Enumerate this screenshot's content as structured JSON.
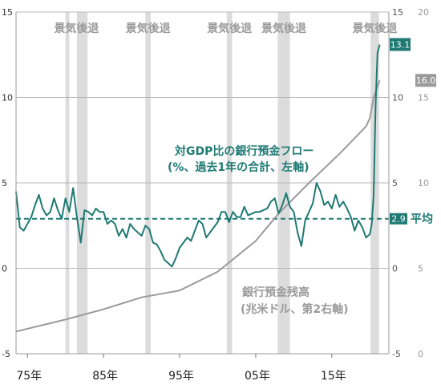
{
  "chart_data": {
    "type": "line",
    "recession_label": "景気後退",
    "recessions": [
      [
        1980.0,
        1980.5
      ],
      [
        1981.5,
        1982.9
      ],
      [
        1990.5,
        1991.2
      ],
      [
        2001.2,
        2001.9
      ],
      [
        2007.9,
        2009.5
      ],
      [
        2020.1,
        2021.2
      ]
    ],
    "x_ticks": [
      {
        "value": 1975,
        "label": "75年"
      },
      {
        "value": 1985,
        "label": "85年"
      },
      {
        "value": 1995,
        "label": "95年"
      },
      {
        "value": 2005,
        "label": "05年"
      },
      {
        "value": 2015,
        "label": "15年"
      }
    ],
    "left_axis": {
      "range": [
        -5,
        15
      ],
      "ticks": [
        -5,
        0,
        5,
        10,
        15
      ]
    },
    "right_axis_1": {
      "range": [
        -5,
        15
      ],
      "ticks": [
        -5,
        0,
        5,
        10,
        15
      ]
    },
    "right_axis_2": {
      "range": [
        0,
        20
      ],
      "ticks": [
        0,
        5,
        10,
        15,
        20
      ]
    },
    "grid": true,
    "average": {
      "value": 2.9,
      "label": "2.9",
      "name": "平均"
    },
    "series": [
      {
        "name": "対GDP比の銀行預金フロー",
        "name_line2": "(%、過去1年の合計、左軸)",
        "color": "#1f7a73",
        "axis": "left",
        "last_value_label": "13.1",
        "x": [
          1973.5,
          1974,
          1974.5,
          1975,
          1975.5,
          1976,
          1976.5,
          1977,
          1977.5,
          1978,
          1978.5,
          1979,
          1979.5,
          1980,
          1980.5,
          1981,
          1981.5,
          1982,
          1982.5,
          1983,
          1983.5,
          1984,
          1984.5,
          1985,
          1985.5,
          1986,
          1986.5,
          1987,
          1987.5,
          1988,
          1988.5,
          1989,
          1989.5,
          1990,
          1990.5,
          1991,
          1991.5,
          1992,
          1992.5,
          1993,
          1993.5,
          1994,
          1994.5,
          1995,
          1995.5,
          1996,
          1996.5,
          1997,
          1997.5,
          1998,
          1998.5,
          1999,
          1999.5,
          2000,
          2000.5,
          2001,
          2001.5,
          2002,
          2002.5,
          2003,
          2003.5,
          2004,
          2004.5,
          2005,
          2005.5,
          2006,
          2006.5,
          2007,
          2007.5,
          2008,
          2008.5,
          2009,
          2009.5,
          2010,
          2010.5,
          2011,
          2011.5,
          2012,
          2012.5,
          2013,
          2013.5,
          2014,
          2014.5,
          2015,
          2015.5,
          2016,
          2016.5,
          2017,
          2017.5,
          2018,
          2018.5,
          2019,
          2019.5,
          2020,
          2020.25,
          2020.5,
          2020.75,
          2021,
          2021.3
        ],
        "values": [
          4.5,
          2.4,
          2.2,
          2.6,
          3.0,
          3.7,
          4.3,
          3.5,
          3.1,
          3.3,
          4.1,
          3.4,
          2.9,
          4.1,
          3.3,
          4.7,
          3.0,
          1.5,
          3.4,
          3.3,
          3.1,
          3.5,
          3.3,
          3.3,
          2.6,
          2.8,
          2.6,
          1.9,
          2.3,
          1.8,
          2.6,
          2.3,
          2.1,
          1.9,
          2.5,
          2.3,
          1.5,
          1.4,
          1.0,
          0.5,
          0.3,
          0.1,
          0.6,
          1.2,
          1.5,
          1.8,
          1.6,
          2.2,
          2.8,
          2.6,
          1.8,
          2.1,
          2.4,
          2.7,
          3.3,
          3.3,
          2.7,
          3.3,
          3.0,
          3.0,
          3.6,
          3.1,
          3.2,
          3.3,
          3.3,
          3.4,
          3.5,
          3.9,
          4.1,
          3.2,
          3.7,
          4.4,
          3.6,
          3.3,
          2.1,
          1.3,
          2.8,
          3.3,
          3.8,
          5.0,
          4.5,
          3.7,
          3.9,
          3.5,
          4.3,
          3.6,
          3.9,
          3.5,
          3.0,
          2.2,
          2.8,
          2.4,
          1.8,
          2.0,
          2.6,
          4.3,
          9.5,
          12.6,
          13.1
        ]
      },
      {
        "name": "銀行預金残高",
        "name_line2": "(兆米ドル、第2右軸)",
        "color": "#9a9a9a",
        "axis": "right_2",
        "last_value_label": "16.0",
        "x": [
          1973.5,
          1980,
          1985,
          1990,
          1995,
          2000,
          2005,
          2008,
          2012,
          2016,
          2019.5,
          2020,
          2020.5,
          2021.3
        ],
        "values": [
          1.3,
          2.0,
          2.6,
          3.3,
          3.7,
          4.8,
          6.6,
          8.2,
          10.0,
          11.7,
          13.3,
          13.8,
          15.0,
          16.0
        ]
      }
    ]
  }
}
